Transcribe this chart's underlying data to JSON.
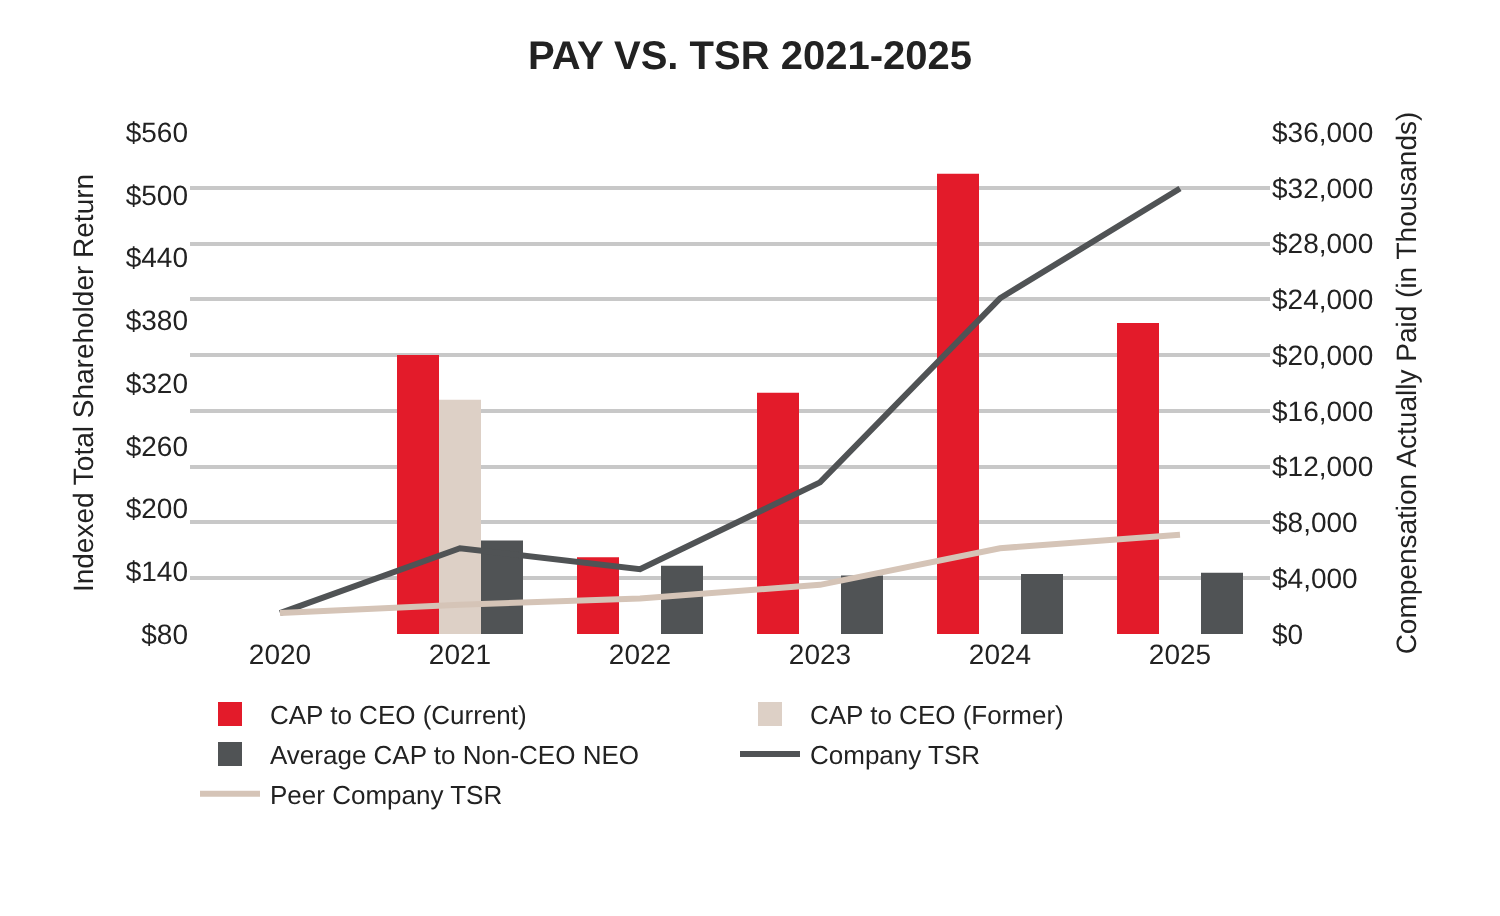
{
  "chart_data": {
    "type": "bar",
    "title": "PAY VS. TSR 2021-2025",
    "ylabel": "Indexed Total Shareholder Return",
    "y2label": "Compensation Actually Paid (in Thousands)",
    "categories": [
      "2020",
      "2021",
      "2022",
      "2023",
      "2024",
      "2025"
    ],
    "series": [
      {
        "name": "CAP to CEO (Current)",
        "color": "#e31b2a",
        "axis": "y2",
        "values": [
          null,
          20000,
          5500,
          17300,
          33000,
          22300
        ]
      },
      {
        "name": "CAP to CEO (Former)",
        "color": "#ddd0c6",
        "axis": "y2",
        "values": [
          null,
          16800,
          null,
          null,
          null,
          null
        ]
      },
      {
        "name": "Average CAP to Non-CEO NEO",
        "color": "#505355",
        "axis": "y2",
        "values": [
          null,
          6700,
          4900,
          4200,
          4300,
          4400
        ]
      },
      {
        "name": "Company TSR",
        "type": "line",
        "color": "#505355",
        "axis": "y",
        "values": [
          100,
          162,
          142,
          225,
          401,
          506
        ]
      },
      {
        "name": "Peer Company TSR",
        "type": "line",
        "color": "#d5c4b7",
        "axis": "y",
        "values": [
          100,
          108,
          114,
          127,
          162,
          175
        ]
      }
    ],
    "ylim": [
      80,
      560
    ],
    "yticks": [
      {
        "value": 80,
        "label": "$80"
      },
      {
        "value": 140,
        "label": "$140"
      },
      {
        "value": 200,
        "label": "$200"
      },
      {
        "value": 260,
        "label": "$260"
      },
      {
        "value": 320,
        "label": "$320"
      },
      {
        "value": 380,
        "label": "$380"
      },
      {
        "value": 440,
        "label": "$440"
      },
      {
        "value": 500,
        "label": "$500"
      },
      {
        "value": 560,
        "label": "$560"
      }
    ],
    "y2lim": [
      0,
      36000
    ],
    "y2ticks": [
      {
        "value": 0,
        "label": "$0"
      },
      {
        "value": 4000,
        "label": "$4,000"
      },
      {
        "value": 8000,
        "label": "$8,000"
      },
      {
        "value": 12000,
        "label": "$12,000"
      },
      {
        "value": 16000,
        "label": "$16,000"
      },
      {
        "value": 20000,
        "label": "$20,000"
      },
      {
        "value": 24000,
        "label": "$24,000"
      },
      {
        "value": 28000,
        "label": "$28,000"
      },
      {
        "value": 32000,
        "label": "$32,000"
      },
      {
        "value": 36000,
        "label": "$36,000"
      }
    ],
    "grid": "y",
    "legend": "bottom",
    "marker": "none",
    "line_style": "solid"
  }
}
